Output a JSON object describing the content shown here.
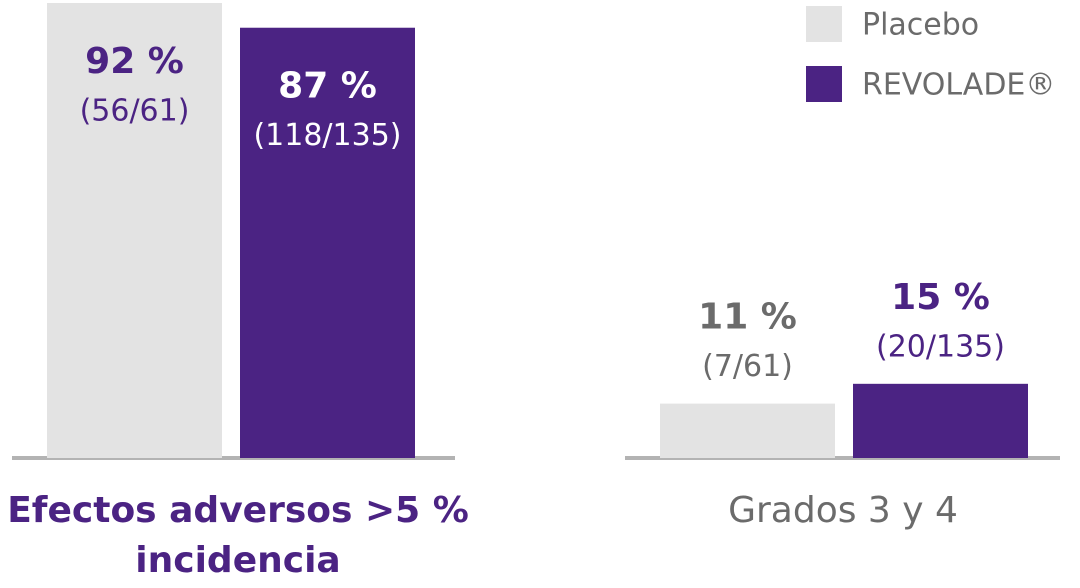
{
  "chart_data": {
    "type": "bar",
    "categories": [
      "Efectos adversos >5 % incidencia",
      "Grados 3 y 4"
    ],
    "series": [
      {
        "name": "Placebo",
        "color": "#e3e3e3",
        "values": [
          92,
          11
        ],
        "value_labels": [
          "92 %",
          "11 %"
        ],
        "fraction_labels": [
          "(56/61)",
          "(7/61)"
        ]
      },
      {
        "name": "REVOLADE®",
        "color": "#4b2383",
        "values": [
          87,
          15
        ],
        "value_labels": [
          "87 %",
          "15 %"
        ],
        "fraction_labels": [
          "(118/135)",
          "(20/135)"
        ]
      }
    ],
    "ylim": [
      0,
      92
    ],
    "legend": "top-right"
  }
}
